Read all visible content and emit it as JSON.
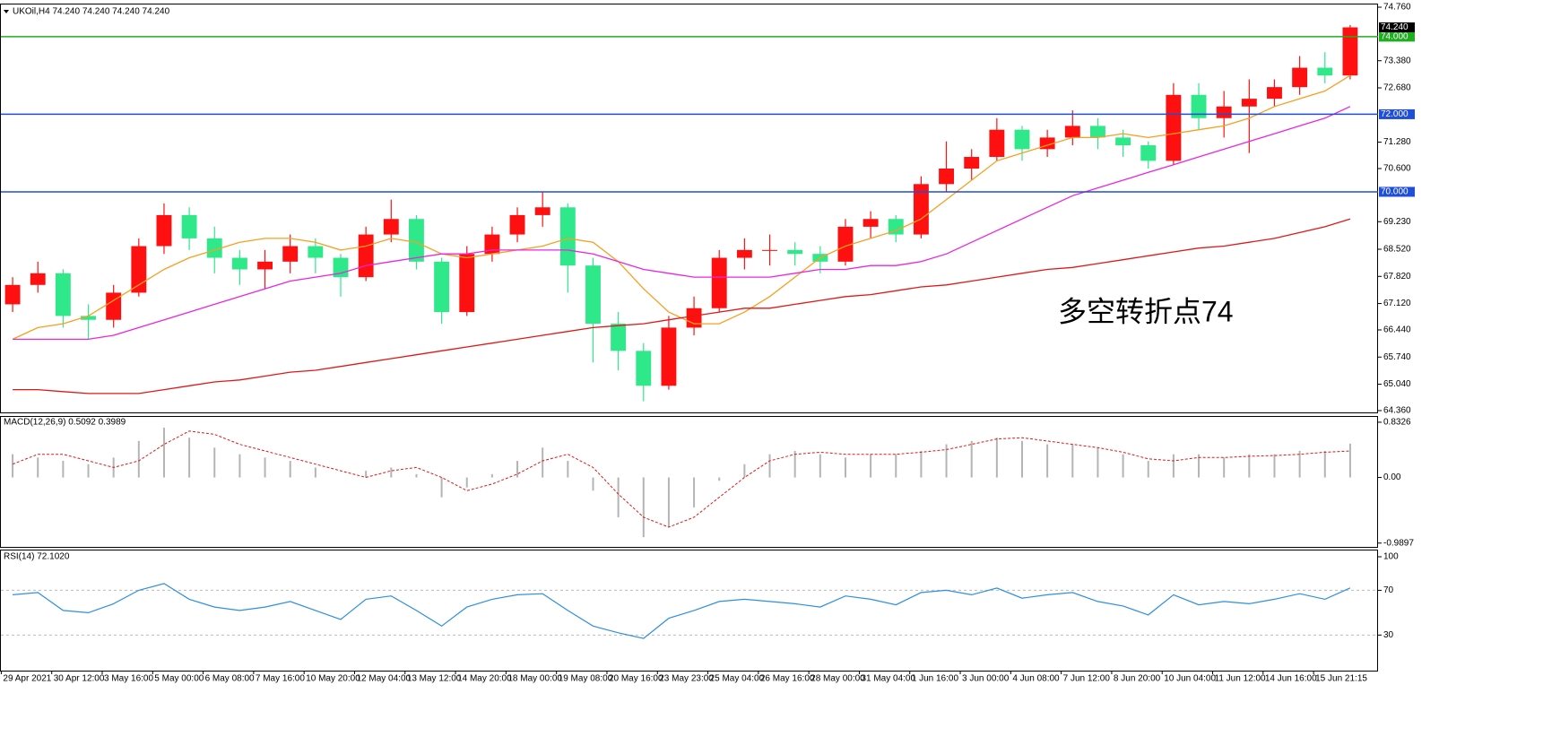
{
  "chart_data": [
    {
      "type": "candlestick",
      "title": "UKOil,H4  74.240 74.240 74.240 74.240",
      "annotation": "多空转折点74",
      "annotation_color": "#e02b2b",
      "categories": [
        "29 Apr 2021",
        null,
        "30 Apr 12:00",
        null,
        "3 May 16:00",
        null,
        "5 May 00:00",
        null,
        "6 May 08:00",
        null,
        "7 May 16:00",
        null,
        "10 May 20:00",
        null,
        "12 May 04:00",
        null,
        "13 May 12:00",
        null,
        "14 May 20:00",
        null,
        "18 May 00:00",
        null,
        "19 May 08:00",
        null,
        "20 May 16:00",
        null,
        "23 May 23:00",
        null,
        "25 May 04:00",
        null,
        "26 May 16:00",
        null,
        "28 May 00:00",
        null,
        "31 May 04:00",
        null,
        "1 Jun 16:00",
        null,
        "3 Jun 00:00",
        null,
        "4 Jun 08:00",
        null,
        "7 Jun 12:00",
        null,
        "8 Jun 20:00",
        null,
        "10 Jun 04:00",
        null,
        "11 Jun 12:00",
        null,
        "14 Jun 16:00",
        null,
        "15 Jun 21:15",
        null
      ],
      "open": [
        67.1,
        67.6,
        67.9,
        66.8,
        66.7,
        67.4,
        68.6,
        69.4,
        68.8,
        68.3,
        68.0,
        68.2,
        68.6,
        68.3,
        67.8,
        68.9,
        69.3,
        68.2,
        66.9,
        68.4,
        68.9,
        69.4,
        69.6,
        68.1,
        66.6,
        65.9,
        65.0,
        66.5,
        67.0,
        68.3,
        68.5,
        68.5,
        68.4,
        68.2,
        69.1,
        69.3,
        68.9,
        70.2,
        70.6,
        70.9,
        71.6,
        71.1,
        71.4,
        71.7,
        71.4,
        71.2,
        70.8,
        72.5,
        71.9,
        72.2,
        72.4,
        72.7,
        73.2,
        73.0
      ],
      "high": [
        67.8,
        68.2,
        68.0,
        67.1,
        67.6,
        68.8,
        69.7,
        69.6,
        69.1,
        68.5,
        68.5,
        68.9,
        68.8,
        68.4,
        69.1,
        69.8,
        69.4,
        68.3,
        68.6,
        69.1,
        69.6,
        70.0,
        69.7,
        68.3,
        66.9,
        66.1,
        66.8,
        67.3,
        68.5,
        68.8,
        68.9,
        68.7,
        68.6,
        69.3,
        69.5,
        69.4,
        70.4,
        71.3,
        71.1,
        71.9,
        71.7,
        71.6,
        72.1,
        71.9,
        71.6,
        71.3,
        72.8,
        72.8,
        72.6,
        72.9,
        72.9,
        73.5,
        73.6,
        74.3
      ],
      "low": [
        66.9,
        67.4,
        66.5,
        66.2,
        66.5,
        67.3,
        68.4,
        68.5,
        67.9,
        67.6,
        67.5,
        67.9,
        67.9,
        67.3,
        67.7,
        68.7,
        68.0,
        66.6,
        66.8,
        68.2,
        68.7,
        69.1,
        67.4,
        65.6,
        65.4,
        64.6,
        64.9,
        66.3,
        66.9,
        68.0,
        68.1,
        68.1,
        67.9,
        68.1,
        68.8,
        68.7,
        68.8,
        70.0,
        70.3,
        70.8,
        70.8,
        70.9,
        71.2,
        71.1,
        70.9,
        70.6,
        70.7,
        71.6,
        71.4,
        71.0,
        72.2,
        72.5,
        72.8,
        72.9
      ],
      "close": [
        67.6,
        67.9,
        66.8,
        66.7,
        67.4,
        68.6,
        69.4,
        68.8,
        68.3,
        68.0,
        68.2,
        68.6,
        68.3,
        67.8,
        68.9,
        69.3,
        68.2,
        66.9,
        68.4,
        68.9,
        69.4,
        69.6,
        68.1,
        66.6,
        65.9,
        65.0,
        66.5,
        67.0,
        68.3,
        68.5,
        68.5,
        68.4,
        68.2,
        69.1,
        69.3,
        68.9,
        70.2,
        70.6,
        70.9,
        71.6,
        71.1,
        71.4,
        71.7,
        71.4,
        71.2,
        70.8,
        72.5,
        71.9,
        72.2,
        72.4,
        72.7,
        73.2,
        73.0,
        74.24
      ],
      "up_color": "#ff1010",
      "down_color": "#2fe88a",
      "overlays": [
        {
          "color": "#f5a020",
          "values": [
            66.2,
            66.5,
            66.6,
            66.8,
            67.2,
            67.6,
            68.0,
            68.3,
            68.5,
            68.7,
            68.8,
            68.8,
            68.7,
            68.5,
            68.6,
            68.8,
            68.7,
            68.4,
            68.3,
            68.4,
            68.5,
            68.6,
            68.8,
            68.7,
            68.2,
            67.5,
            66.9,
            66.6,
            66.6,
            66.9,
            67.3,
            67.8,
            68.3,
            68.6,
            68.8,
            69.0,
            69.3,
            69.8,
            70.3,
            70.8,
            71.0,
            71.2,
            71.4,
            71.4,
            71.5,
            71.4,
            71.5,
            71.6,
            71.7,
            71.9,
            72.2,
            72.4,
            72.6,
            73.0
          ]
        },
        {
          "color": "#e826e0",
          "values": [
            66.2,
            66.2,
            66.2,
            66.2,
            66.3,
            66.5,
            66.7,
            66.9,
            67.1,
            67.3,
            67.5,
            67.7,
            67.8,
            67.9,
            68.1,
            68.2,
            68.3,
            68.4,
            68.4,
            68.5,
            68.5,
            68.5,
            68.5,
            68.4,
            68.2,
            68.0,
            67.9,
            67.8,
            67.8,
            67.8,
            67.8,
            67.9,
            68.0,
            68.0,
            68.1,
            68.1,
            68.2,
            68.4,
            68.7,
            69.0,
            69.3,
            69.6,
            69.9,
            70.1,
            70.3,
            70.5,
            70.7,
            70.9,
            71.1,
            71.3,
            71.5,
            71.7,
            71.9,
            72.2
          ]
        },
        {
          "color": "#e01818",
          "values": [
            64.9,
            64.9,
            64.85,
            64.8,
            64.8,
            64.8,
            64.9,
            65.0,
            65.1,
            65.15,
            65.25,
            65.35,
            65.4,
            65.5,
            65.6,
            65.7,
            65.8,
            65.9,
            66.0,
            66.1,
            66.2,
            66.3,
            66.4,
            66.5,
            66.55,
            66.6,
            66.7,
            66.8,
            66.9,
            67.0,
            67.0,
            67.1,
            67.2,
            67.3,
            67.35,
            67.45,
            67.55,
            67.6,
            67.7,
            67.8,
            67.9,
            68.0,
            68.05,
            68.15,
            68.25,
            68.35,
            68.45,
            68.55,
            68.6,
            68.7,
            68.8,
            68.95,
            69.1,
            69.3
          ]
        }
      ],
      "levels": [
        {
          "value": 74,
          "label": "74.000",
          "color": "#1fae1f"
        },
        {
          "value": 72,
          "label": "72.000",
          "color": "#1f4fd8"
        },
        {
          "value": 70,
          "label": "70.000",
          "color": "#1f4fd8"
        }
      ],
      "last_price": {
        "value": 74.24,
        "label": "74.240"
      },
      "ylim": [
        64.29,
        74.83
      ],
      "yticks": [
        {
          "value": 74.76,
          "label": "74.760"
        },
        {
          "value": 73.38,
          "label": "73.380"
        },
        {
          "value": 72.68,
          "label": "72.680"
        },
        {
          "value": 71.28,
          "label": "71.280"
        },
        {
          "value": 70.6,
          "label": "70.600"
        },
        {
          "value": 69.23,
          "label": "69.230"
        },
        {
          "value": 68.52,
          "label": "68.520"
        },
        {
          "value": 67.82,
          "label": "67.820"
        },
        {
          "value": 67.12,
          "label": "67.120"
        },
        {
          "value": 66.44,
          "label": "66.440"
        },
        {
          "value": 65.74,
          "label": "65.740"
        },
        {
          "value": 65.04,
          "label": "65.040"
        },
        {
          "value": 64.36,
          "label": "64.360"
        }
      ]
    },
    {
      "type": "macd",
      "title": "MACD(12,26,9) 0.5092 0.3989",
      "histogram": {
        "color": "#b4b4b4",
        "values": [
          0.35,
          0.3,
          0.25,
          0.2,
          0.3,
          0.55,
          0.75,
          0.6,
          0.45,
          0.35,
          0.3,
          0.25,
          0.15,
          0.0,
          0.1,
          0.15,
          0.05,
          -0.3,
          -0.15,
          0.05,
          0.25,
          0.45,
          0.25,
          -0.2,
          -0.6,
          -0.9,
          -0.75,
          -0.45,
          -0.05,
          0.2,
          0.35,
          0.4,
          0.35,
          0.3,
          0.35,
          0.35,
          0.4,
          0.5,
          0.55,
          0.6,
          0.55,
          0.5,
          0.5,
          0.45,
          0.35,
          0.25,
          0.35,
          0.35,
          0.3,
          0.35,
          0.35,
          0.4,
          0.4,
          0.5092
        ]
      },
      "signal": {
        "color": "#e01818",
        "values": [
          0.2,
          0.35,
          0.35,
          0.25,
          0.15,
          0.25,
          0.5,
          0.7,
          0.65,
          0.5,
          0.4,
          0.3,
          0.2,
          0.1,
          0.0,
          0.1,
          0.15,
          0.0,
          -0.2,
          -0.1,
          0.05,
          0.25,
          0.35,
          0.15,
          -0.25,
          -0.6,
          -0.75,
          -0.6,
          -0.3,
          0.0,
          0.25,
          0.35,
          0.38,
          0.35,
          0.35,
          0.35,
          0.38,
          0.42,
          0.5,
          0.58,
          0.6,
          0.55,
          0.5,
          0.45,
          0.38,
          0.28,
          0.25,
          0.3,
          0.3,
          0.32,
          0.33,
          0.35,
          0.38,
          0.3989
        ]
      },
      "ylim": [
        -1.047,
        0.913
      ],
      "yticks": [
        0.8326,
        {
          "value": 0,
          "label": "0.00"
        },
        -0.9897
      ]
    },
    {
      "type": "line",
      "title": "RSI(14) 72.1020",
      "color": "#2e8fe0",
      "values": [
        66,
        68,
        52,
        50,
        58,
        70,
        76,
        62,
        55,
        52,
        55,
        60,
        52,
        44,
        62,
        65,
        52,
        38,
        55,
        62,
        66,
        67,
        52,
        38,
        32,
        27,
        45,
        52,
        60,
        62,
        60,
        58,
        55,
        65,
        62,
        57,
        68,
        70,
        66,
        72,
        63,
        66,
        68,
        60,
        56,
        48,
        66,
        57,
        60,
        58,
        62,
        67,
        62,
        72.102
      ],
      "levels": [
        70,
        30
      ],
      "ylim": [
        -1.8,
        105.6
      ],
      "yticks": [
        100,
        70,
        30
      ]
    }
  ]
}
